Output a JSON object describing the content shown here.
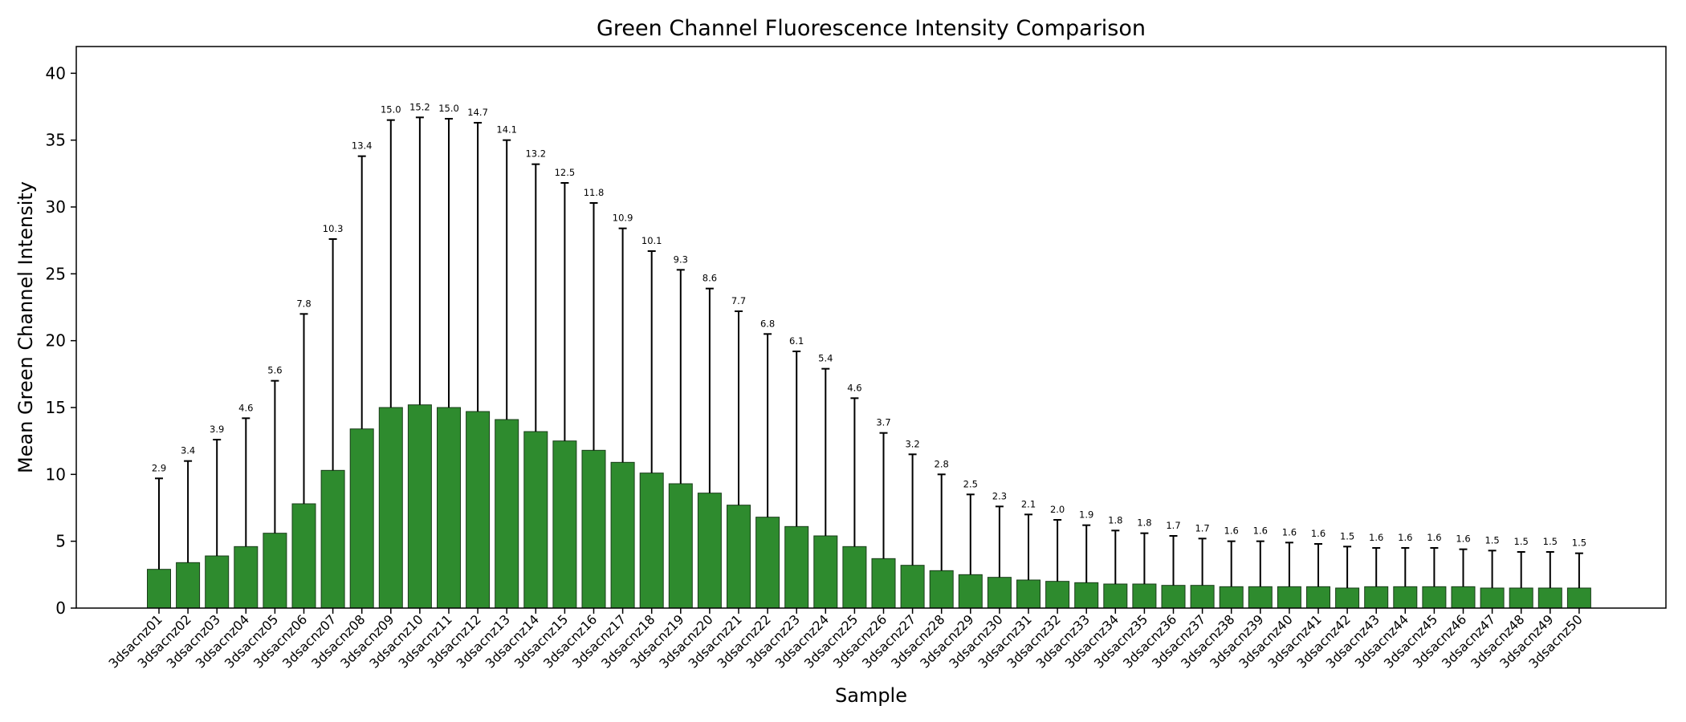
{
  "chart_data": {
    "type": "bar",
    "title": "Green Channel Fluorescence Intensity Comparison",
    "xlabel": "Sample",
    "ylabel": "Mean Green Channel Intensity",
    "ylim": [
      0,
      42
    ],
    "yticks": [
      0,
      5,
      10,
      15,
      20,
      25,
      30,
      35,
      40
    ],
    "grid": false,
    "bar_color": "#2e8b2e",
    "bar_edge_color": "#1a3d1a",
    "error_bar_color": "#000000",
    "categories": [
      "3dsacnz01",
      "3dsacnz02",
      "3dsacnz03",
      "3dsacnz04",
      "3dsacnz05",
      "3dsacnz06",
      "3dsacnz07",
      "3dsacnz08",
      "3dsacnz09",
      "3dsacnz10",
      "3dsacnz11",
      "3dsacnz12",
      "3dsacnz13",
      "3dsacnz14",
      "3dsacnz15",
      "3dsacnz16",
      "3dsacnz17",
      "3dsacnz18",
      "3dsacnz19",
      "3dsacnz20",
      "3dsacnz21",
      "3dsacnz22",
      "3dsacnz23",
      "3dsacnz24",
      "3dsacnz25",
      "3dsacnz26",
      "3dsacnz27",
      "3dsacnz28",
      "3dsacnz29",
      "3dsacnz30",
      "3dsacnz31",
      "3dsacnz32",
      "3dsacnz33",
      "3dsacnz34",
      "3dsacnz35",
      "3dsacnz36",
      "3dsacnz37",
      "3dsacnz38",
      "3dsacnz39",
      "3dsacnz40",
      "3dsacnz41",
      "3dsacnz42",
      "3dsacnz43",
      "3dsacnz44",
      "3dsacnz45",
      "3dsacnz46",
      "3dsacnz47",
      "3dsacnz48",
      "3dsacnz49",
      "3dsacnz50"
    ],
    "values": [
      2.9,
      3.4,
      3.9,
      4.6,
      5.6,
      7.8,
      10.3,
      13.4,
      15.0,
      15.2,
      15.0,
      14.7,
      14.1,
      13.2,
      12.5,
      11.8,
      10.9,
      10.1,
      9.3,
      8.6,
      7.7,
      6.8,
      6.1,
      5.4,
      4.6,
      3.7,
      3.2,
      2.8,
      2.5,
      2.3,
      2.1,
      2.0,
      1.9,
      1.8,
      1.8,
      1.7,
      1.7,
      1.6,
      1.6,
      1.6,
      1.6,
      1.5,
      1.6,
      1.6,
      1.6,
      1.6,
      1.5,
      1.5,
      1.5,
      1.5
    ],
    "error_tops": [
      9.7,
      11.0,
      12.6,
      14.2,
      17.0,
      22.0,
      27.6,
      33.8,
      36.5,
      36.7,
      36.6,
      36.3,
      35.0,
      33.2,
      31.8,
      30.3,
      28.4,
      26.7,
      25.3,
      23.9,
      22.2,
      20.5,
      19.2,
      17.9,
      15.7,
      13.1,
      11.5,
      10.0,
      8.5,
      7.6,
      7.0,
      6.6,
      6.2,
      5.8,
      5.6,
      5.4,
      5.2,
      5.0,
      5.0,
      4.9,
      4.8,
      4.6,
      4.5,
      4.5,
      4.5,
      4.4,
      4.3,
      4.2,
      4.2,
      4.1
    ],
    "value_labels": [
      "2.9",
      "3.4",
      "3.9",
      "4.6",
      "5.6",
      "7.8",
      "10.3",
      "13.4",
      "15.0",
      "15.2",
      "15.0",
      "14.7",
      "14.1",
      "13.2",
      "12.5",
      "11.8",
      "10.9",
      "10.1",
      "9.3",
      "8.6",
      "7.7",
      "6.8",
      "6.1",
      "5.4",
      "4.6",
      "3.7",
      "3.2",
      "2.8",
      "2.5",
      "2.3",
      "2.1",
      "2.0",
      "1.9",
      "1.8",
      "1.8",
      "1.7",
      "1.7",
      "1.6",
      "1.6",
      "1.6",
      "1.6",
      "1.5",
      "1.6",
      "1.6",
      "1.6",
      "1.6",
      "1.5",
      "1.5",
      "1.5",
      "1.5"
    ]
  }
}
